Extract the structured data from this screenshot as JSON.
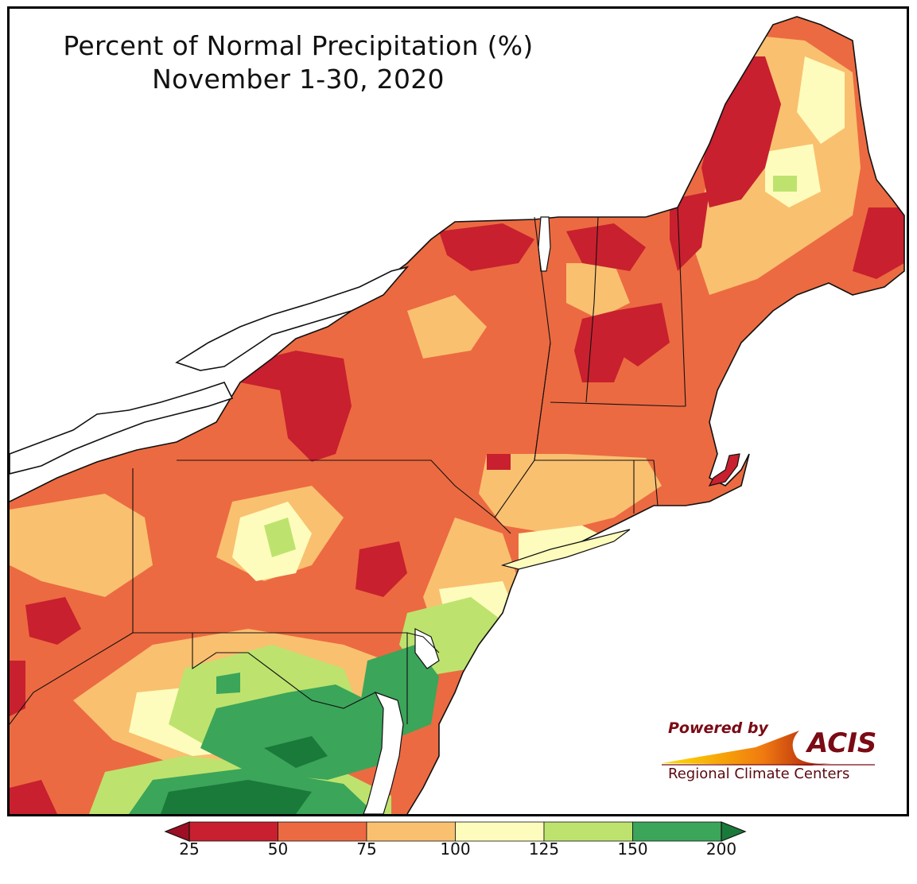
{
  "title": {
    "line1": "Percent of Normal Precipitation (%)",
    "line2": "November 1-30, 2020"
  },
  "legend": {
    "ticks": [
      "25",
      "50",
      "75",
      "100",
      "125",
      "150",
      "200"
    ],
    "colors": [
      "#c8202e",
      "#ec6a41",
      "#f9c070",
      "#fdfcbc",
      "#bde36e",
      "#3ba55a"
    ],
    "under_color": "#9c0f24",
    "over_color": "#1a7a3a"
  },
  "logo": {
    "powered_by": "Powered by",
    "brand": "ACIS",
    "subtitle": "Regional Climate Centers"
  },
  "map_palette": {
    "water": "#ffffff",
    "outline": "#111111",
    "county_line": "#9a9a9a"
  }
}
